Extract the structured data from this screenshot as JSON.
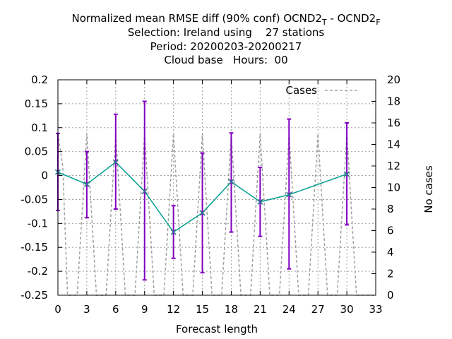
{
  "chart_data": {
    "type": "line",
    "title": {
      "line1_main": "Normalized mean RMSE diff (90% conf) OCND2",
      "line1_sub1": "T",
      "line1_mid": " - OCND2",
      "line1_sub2": "F",
      "line2": "Selection: Ireland using    27 stations",
      "line3": "Period: 20200203-20200217",
      "line4": "Cloud base   Hours:  00"
    },
    "xlabel": "Forecast length",
    "ylabel_left": "",
    "ylabel_right": "No cases",
    "xlim": [
      0,
      33
    ],
    "ylim": [
      -0.25,
      0.2
    ],
    "y2lim": [
      0,
      20
    ],
    "x_ticks": [
      0,
      3,
      6,
      9,
      12,
      15,
      18,
      21,
      24,
      27,
      30,
      33
    ],
    "y_ticks": [
      -0.25,
      -0.2,
      -0.15,
      -0.1,
      -0.05,
      0,
      0.05,
      0.1,
      0.15,
      0.2
    ],
    "y_tick_labels": [
      "-0.25",
      "-0.2",
      "-0.15",
      "-0.1",
      "-0.05",
      "0",
      "0.05",
      "0.1",
      "0.15",
      "0.2"
    ],
    "y2_ticks": [
      0,
      2,
      4,
      6,
      8,
      10,
      12,
      14,
      16,
      18,
      20
    ],
    "grid": true,
    "legend": {
      "label": "Cases",
      "placement": "top-right"
    },
    "series": [
      {
        "x": [
          0,
          3,
          6,
          9,
          12,
          15,
          18,
          21,
          24,
          30
        ],
        "y": [
          0.007,
          -0.018,
          0.028,
          -0.033,
          -0.118,
          -0.078,
          -0.013,
          -0.055,
          -0.04,
          0.003
        ],
        "err_low": [
          -0.073,
          -0.088,
          -0.07,
          -0.218,
          -0.173,
          -0.203,
          -0.118,
          -0.127,
          -0.195,
          -0.103
        ],
        "err_high": [
          0.088,
          0.05,
          0.128,
          0.155,
          -0.063,
          0.047,
          0.089,
          0.017,
          0.118,
          0.11
        ]
      },
      {
        "name": "Cases",
        "axis": "right",
        "x": [
          0,
          0.5,
          1,
          2,
          3,
          4,
          5,
          6,
          7,
          8,
          9,
          10,
          11,
          12,
          13,
          14,
          15,
          16,
          17,
          18,
          19,
          20,
          21,
          22,
          23,
          24,
          25,
          26,
          27,
          28,
          29,
          30,
          31,
          32,
          33
        ],
        "y": [
          15,
          12,
          0,
          0,
          15,
          0,
          0,
          15,
          0,
          0,
          15,
          0,
          0,
          15,
          0,
          0,
          15,
          0,
          0,
          15,
          0,
          0,
          15,
          0,
          0,
          15,
          0,
          0,
          15,
          0,
          0,
          15,
          0,
          0,
          0
        ]
      }
    ],
    "colors": {
      "line": "#009e8e",
      "errorbar": "#8000c0",
      "cases": "#a0a0a0",
      "grid": "#a0a0a0"
    }
  }
}
